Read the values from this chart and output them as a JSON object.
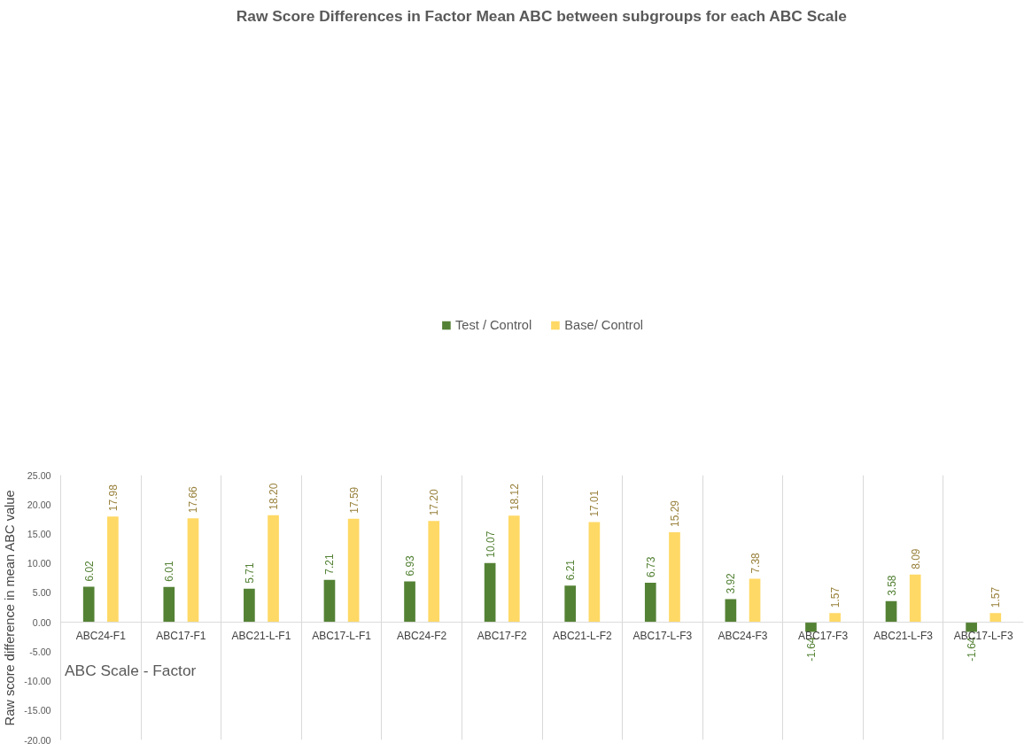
{
  "chart_data": {
    "type": "bar",
    "title": "Raw Score Differences in Factor Mean ABC between subgroups for each ABC Scale",
    "xlabel": "ABC Scale - Factor",
    "ylabel": "Raw score difference in mean ABC value",
    "categories": [
      "ABC24-F1",
      "ABC17-F1",
      "ABC21-L-F1",
      "ABC17-L-F1",
      "ABC24-F2",
      "ABC17-F2",
      "ABC21-L-F2",
      "ABC17-L-F3",
      "ABC24-F3",
      "ABC17-F3",
      "ABC21-L-F3",
      "ABC17-L-F3"
    ],
    "series": [
      {
        "name": "Test / Control",
        "color": "#548235",
        "values": [
          6.02,
          6.01,
          5.71,
          7.21,
          6.93,
          10.07,
          6.21,
          6.73,
          3.92,
          -1.64,
          3.58,
          -1.64
        ],
        "value_labels": [
          "6.02",
          "6.01",
          "5.71",
          "7.21",
          "6.93",
          "10.07",
          "6.21",
          "6.73",
          "3.92",
          "-1.64",
          "3.58",
          "-1.64"
        ]
      },
      {
        "name": "Base/ Control",
        "color": "#ffd966",
        "values": [
          17.98,
          17.66,
          18.2,
          17.59,
          17.2,
          18.12,
          17.01,
          15.29,
          7.38,
          1.57,
          8.09,
          1.57
        ],
        "value_labels": [
          "17.98",
          "17.66",
          "18.20",
          "17.59",
          "17.20",
          "18.12",
          "17.01",
          "15.29",
          "7.38",
          "1.57",
          "8.09",
          "1.57"
        ]
      }
    ],
    "ylim": [
      -20,
      25
    ],
    "yticks": [
      {
        "value": -20,
        "label": "-20.00"
      },
      {
        "value": -15,
        "label": "-15.00"
      },
      {
        "value": -10,
        "label": "-10.00"
      },
      {
        "value": -5,
        "label": "-5.00"
      },
      {
        "value": 0,
        "label": "0.00"
      },
      {
        "value": 5,
        "label": "5.00"
      },
      {
        "value": 10,
        "label": "10.00"
      },
      {
        "value": 15,
        "label": "15.00"
      },
      {
        "value": 20,
        "label": "20.00"
      },
      {
        "value": 25,
        "label": "25.00"
      }
    ],
    "grid": "x",
    "legend": "top"
  }
}
